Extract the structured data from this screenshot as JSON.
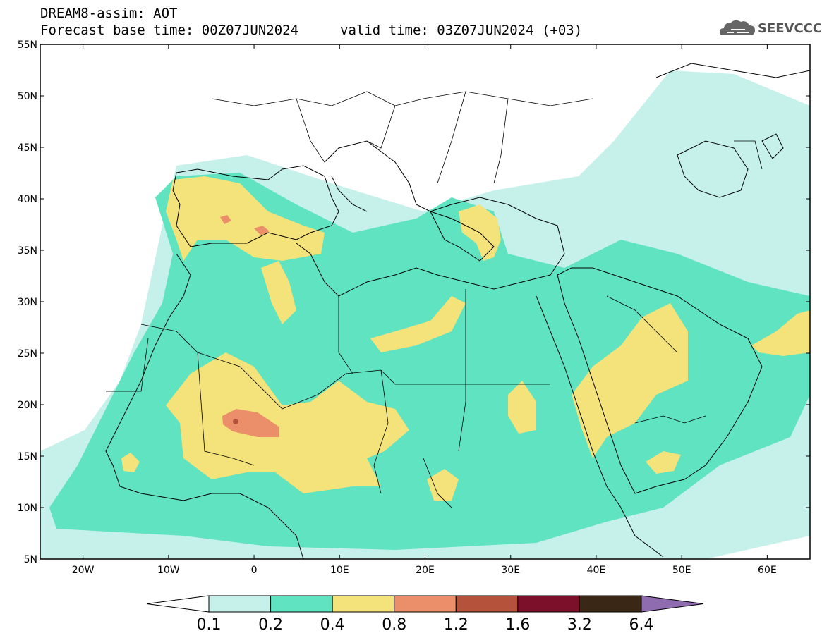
{
  "title": {
    "line1": "DREAM8-assim: AOT",
    "line2": "Forecast base time: 00Z07JUN2024",
    "valid": "valid time: 03Z07JUN2024 (+03)"
  },
  "logo": {
    "text": "SEEVCCC",
    "icon": "cloud-icon"
  },
  "map": {
    "lat_ticks": [
      "55N",
      "50N",
      "45N",
      "40N",
      "35N",
      "30N",
      "25N",
      "20N",
      "15N",
      "10N",
      "5N"
    ],
    "lon_ticks": [
      "20W",
      "10W",
      "0",
      "10E",
      "20E",
      "30E",
      "40E",
      "50E",
      "60E"
    ]
  },
  "colorbar": {
    "labels": [
      "0.1",
      "0.2",
      "0.4",
      "0.8",
      "1.2",
      "1.6",
      "3.2",
      "6.4"
    ],
    "colors": [
      "#ffffff",
      "#c6f0ea",
      "#5fe3c0",
      "#f4e27a",
      "#eb8f6a",
      "#b4523c",
      "#7c0f2a",
      "#3a2716",
      "#8f6bb0"
    ]
  }
}
